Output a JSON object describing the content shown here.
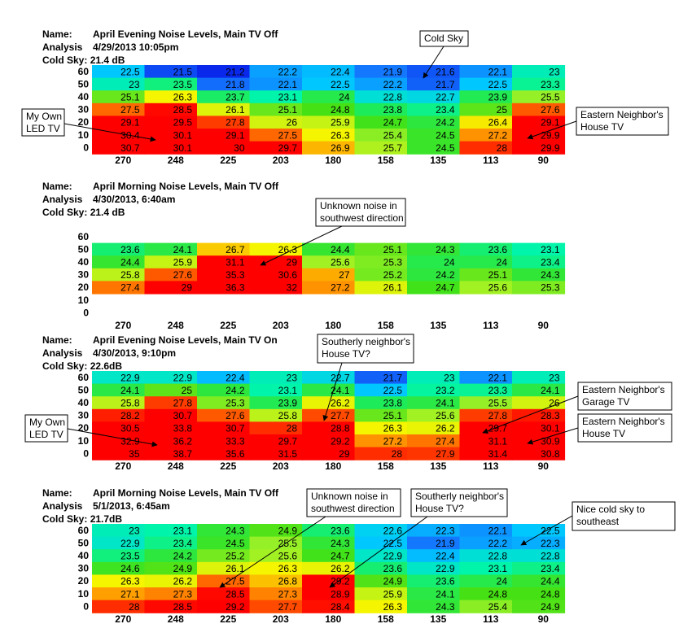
{
  "x_labels": [
    "270",
    "248",
    "225",
    "203",
    "180",
    "158",
    "135",
    "113",
    "90"
  ],
  "y_labels": [
    "60",
    "50",
    "40",
    "30",
    "20",
    "10",
    "0"
  ],
  "header_keys": {
    "name": "Name:",
    "analysis": "Analysis",
    "cold_sky": "Cold Sky:"
  },
  "chart_data": [
    {
      "type": "heatmap",
      "name": "April Evening Noise Levels, Main TV Off",
      "analysis": "4/29/2013 10:05pm",
      "cold_sky": "21.4 dB",
      "values": [
        [
          22.5,
          21.5,
          21.2,
          22.2,
          22.4,
          21.9,
          21.6,
          22.1,
          23
        ],
        [
          23,
          23.5,
          21.8,
          22.1,
          22.5,
          22.2,
          21.7,
          22.5,
          23.3
        ],
        [
          25.1,
          26.3,
          23.7,
          23.1,
          24,
          22.8,
          22.7,
          23.9,
          25.5
        ],
        [
          27.5,
          28.5,
          26.1,
          25.1,
          24.8,
          23.8,
          23.4,
          25,
          27.6
        ],
        [
          29.1,
          29.5,
          27.8,
          26,
          25.9,
          24.7,
          24.2,
          26.4,
          29.1
        ],
        [
          30.4,
          30.1,
          29.1,
          27.5,
          26.3,
          25.4,
          24.5,
          27.2,
          29.9
        ],
        [
          30.7,
          30.1,
          30,
          29.7,
          26.9,
          25.7,
          24.5,
          28,
          29.9
        ]
      ],
      "annotations": [
        {
          "text": "Cold Sky"
        },
        {
          "text": "My Own\nLED TV"
        },
        {
          "text": "Eastern Neighbor's\nHouse TV"
        }
      ]
    },
    {
      "type": "heatmap",
      "name": "April Morning Noise Levels, Main TV Off",
      "analysis": "4/30/2013, 6:40am",
      "cold_sky": "21.4 dB",
      "values": [
        [
          null,
          null,
          null,
          null,
          null,
          null,
          null,
          null,
          null
        ],
        [
          23.6,
          24.1,
          26.7,
          26.3,
          24.4,
          25.1,
          24.3,
          23.6,
          23.1
        ],
        [
          24.4,
          25.9,
          31.1,
          29,
          25.6,
          25.3,
          24,
          24,
          23.4
        ],
        [
          25.8,
          27.6,
          35.3,
          30.6,
          27,
          25.2,
          24.2,
          25.1,
          24.3
        ],
        [
          27.4,
          29,
          36.3,
          32,
          27.2,
          26.1,
          24.7,
          25.6,
          25.3
        ],
        [
          null,
          null,
          null,
          null,
          null,
          null,
          null,
          null,
          null
        ],
        [
          null,
          null,
          null,
          null,
          null,
          null,
          null,
          null,
          null
        ]
      ],
      "annotations": [
        {
          "text": "Unknown noise in\nsouthwest direction"
        }
      ]
    },
    {
      "type": "heatmap",
      "name": "April Evening Noise Levels, Main TV On",
      "analysis": "4/30/2013, 9:10pm",
      "cold_sky": "22.6dB",
      "values": [
        [
          22.9,
          22.9,
          22.4,
          23,
          22.7,
          21.7,
          23,
          22.1,
          23
        ],
        [
          24.1,
          25,
          24.2,
          23.1,
          24.1,
          22.5,
          23.2,
          23.3,
          24.1
        ],
        [
          25.8,
          27.8,
          25.3,
          23.9,
          26.2,
          23.8,
          24.1,
          25.5,
          26
        ],
        [
          28.2,
          30.7,
          27.6,
          25.8,
          27.7,
          25.1,
          25.6,
          27.8,
          28.3
        ],
        [
          30.5,
          33.8,
          30.7,
          28,
          28.8,
          26.3,
          26.2,
          29.7,
          30.1
        ],
        [
          32.9,
          36.2,
          33.3,
          29.7,
          29.2,
          27.2,
          27.4,
          31.1,
          30.9
        ],
        [
          35,
          38.7,
          35.6,
          31.5,
          29,
          28,
          27.9,
          31.4,
          30.8
        ]
      ],
      "annotations": [
        {
          "text": "Southerly neighbor's\nHouse TV?"
        },
        {
          "text": "My Own\nLED TV"
        },
        {
          "text": "Eastern Neighbor's\nGarage TV"
        },
        {
          "text": "Eastern Neighbor's\nHouse TV"
        }
      ]
    },
    {
      "type": "heatmap",
      "name": "April Morning Noise Levels, Main TV Off",
      "analysis": "5/1/2013, 6:45am",
      "cold_sky": "21.7dB",
      "values": [
        [
          23,
          23.1,
          24.3,
          24.9,
          23.6,
          22.6,
          22.3,
          22.1,
          22.5
        ],
        [
          22.9,
          23.4,
          24.5,
          25.5,
          24.3,
          22.5,
          21.9,
          22.2,
          22.3
        ],
        [
          23.5,
          24.2,
          25.2,
          25.6,
          24.7,
          22.9,
          22.4,
          22.8,
          22.8
        ],
        [
          24.6,
          24.9,
          26.1,
          26.3,
          26.2,
          23.6,
          22.9,
          23.1,
          23.4
        ],
        [
          26.3,
          26.2,
          27.5,
          26.8,
          29.2,
          24.9,
          23.6,
          24,
          24.4
        ],
        [
          27.1,
          27.3,
          28.5,
          27.3,
          28.9,
          25.9,
          24.1,
          24.8,
          24.8
        ],
        [
          28,
          28.5,
          29.2,
          27.7,
          28.4,
          26.3,
          24.3,
          25.4,
          24.9
        ]
      ],
      "annotations": [
        {
          "text": "Unknown noise in\nsouthwest direction"
        },
        {
          "text": "Southerly neighbor's\nHouse TV?"
        },
        {
          "text": "Nice cold sky to\nsoutheast"
        }
      ]
    }
  ]
}
